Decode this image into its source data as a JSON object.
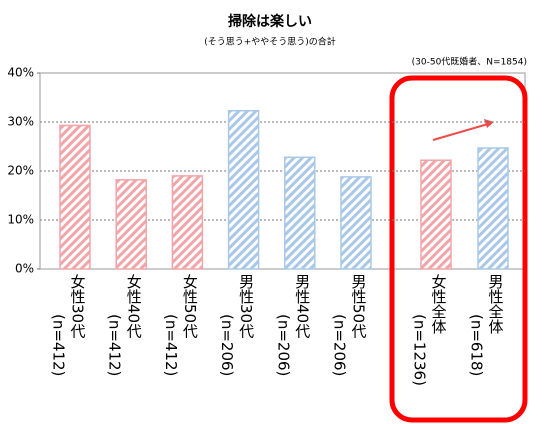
{
  "chart_data": {
    "type": "bar",
    "title": "掃除は楽しい",
    "subtitle": "(そう思う+ややそう思う)の合計",
    "note": "(30-50代既婚者、N=1854)",
    "categories": [
      "女性30代",
      "女性40代",
      "女性50代",
      "男性30代",
      "男性40代",
      "男性50代",
      "女性全体",
      "男性全体"
    ],
    "category_notes": [
      "(n=412)",
      "(n=412)",
      "(n=412)",
      "(n=206)",
      "(n=206)",
      "(n=206)",
      "(n=1236)",
      "(n=618)"
    ],
    "values": [
      29.3,
      18.2,
      19.0,
      32.3,
      22.8,
      18.8,
      22.2,
      24.7
    ],
    "colors": [
      "#f2a5a8",
      "#f2a5a8",
      "#f2a5a8",
      "#a9c8e8",
      "#a9c8e8",
      "#a9c8e8",
      "#f2a5a8",
      "#a9c8e8"
    ],
    "ylim": [
      0,
      40
    ],
    "yticks": [
      {
        "value": 0,
        "label": "0%"
      },
      {
        "value": 10,
        "label": "10%"
      },
      {
        "value": 20,
        "label": "20%"
      },
      {
        "value": 30,
        "label": "30%"
      },
      {
        "value": 40,
        "label": "40%"
      }
    ],
    "grid": true
  }
}
